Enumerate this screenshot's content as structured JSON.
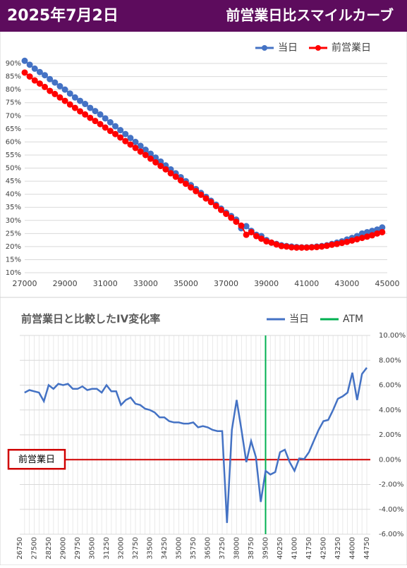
{
  "header": {
    "date": "2025年7月2日",
    "title": "前営業日比スマイルカーブ"
  },
  "chart_data": [
    {
      "type": "line",
      "markers": true,
      "grid": "y",
      "legend": "top-right",
      "x": [
        27000,
        27250,
        27500,
        27750,
        28000,
        28250,
        28500,
        28750,
        29000,
        29250,
        29500,
        29750,
        30000,
        30250,
        30500,
        30750,
        31000,
        31250,
        31500,
        31750,
        32000,
        32250,
        32500,
        32750,
        33000,
        33250,
        33500,
        33750,
        34000,
        34250,
        34500,
        34750,
        35000,
        35250,
        35500,
        35750,
        36000,
        36250,
        36500,
        36750,
        37000,
        37250,
        37500,
        37750,
        38000,
        38250,
        38500,
        38750,
        39000,
        39250,
        39500,
        39750,
        40000,
        40250,
        40500,
        40750,
        41000,
        41250,
        41500,
        41750,
        42000,
        42250,
        42500,
        42750,
        43000,
        43250,
        43500,
        43750,
        44000,
        44250,
        44500,
        44750
      ],
      "xlim": [
        27000,
        45000
      ],
      "xticks": [
        27000,
        29000,
        31000,
        33000,
        35000,
        37000,
        39000,
        41000,
        43000,
        45000
      ],
      "ylim": [
        10,
        90
      ],
      "yticks": [
        {
          "value": 10,
          "label": "10%"
        },
        {
          "value": 15,
          "label": "15%"
        },
        {
          "value": 20,
          "label": "20%"
        },
        {
          "value": 25,
          "label": "25%"
        },
        {
          "value": 30,
          "label": "30%"
        },
        {
          "value": 35,
          "label": "35%"
        },
        {
          "value": 40,
          "label": "40%"
        },
        {
          "value": 45,
          "label": "45%"
        },
        {
          "value": 50,
          "label": "50%"
        },
        {
          "value": 55,
          "label": "55%"
        },
        {
          "value": 60,
          "label": "60%"
        },
        {
          "value": 65,
          "label": "65%"
        },
        {
          "value": 70,
          "label": "70%"
        },
        {
          "value": 75,
          "label": "75%"
        },
        {
          "value": 80,
          "label": "80%"
        },
        {
          "value": 85,
          "label": "85%"
        },
        {
          "value": 90,
          "label": "90%"
        }
      ],
      "series": [
        {
          "name": "当日",
          "color": "#4472c4",
          "values": [
            91,
            89.5,
            88,
            86.7,
            85.5,
            84,
            82.7,
            81.3,
            80,
            78.5,
            77,
            75.7,
            74.5,
            73,
            71.8,
            70.5,
            69,
            67.5,
            66,
            64.5,
            63,
            61.5,
            60,
            58.5,
            57,
            55.5,
            54,
            52.5,
            51,
            49.5,
            48,
            46.5,
            45,
            43.5,
            42,
            40.5,
            39,
            37.5,
            36,
            34.5,
            33,
            31.7,
            30.3,
            27,
            27.8,
            26,
            24.5,
            24,
            22.5,
            21.5,
            21,
            20.5,
            20.2,
            20,
            19.8,
            19.7,
            19.7,
            19.8,
            20,
            20.2,
            20.5,
            21,
            21.5,
            22,
            22.7,
            23.3,
            24,
            25,
            25.5,
            26,
            26.5,
            27.3
          ]
        },
        {
          "name": "前営業日",
          "color": "#ff0000",
          "values": [
            86.5,
            85,
            83.5,
            82.3,
            81,
            79.5,
            78.3,
            77,
            75.7,
            74.3,
            73,
            71.7,
            70.5,
            69.2,
            68,
            66.8,
            65.5,
            64.2,
            63,
            61.7,
            60.3,
            59,
            57.7,
            56.3,
            55,
            53.6,
            52.2,
            50.8,
            49.5,
            48,
            46.7,
            45.3,
            44,
            42.6,
            41.2,
            39.8,
            38.4,
            37,
            35.5,
            34,
            32.5,
            31,
            29.5,
            28,
            24.5,
            25.5,
            24,
            23,
            22,
            21.5,
            20.8,
            20.2,
            20,
            19.7,
            19.6,
            19.6,
            19.6,
            19.7,
            19.8,
            20,
            20.3,
            20.7,
            21,
            21.4,
            21.8,
            22.3,
            22.8,
            23.3,
            23.8,
            24.3,
            25,
            25.5
          ]
        }
      ]
    },
    {
      "type": "line",
      "markers": false,
      "grid": "both",
      "legend": "top",
      "yaxis": "right",
      "title": "前営業日と比較したIV変化率",
      "x": [
        27000,
        27250,
        27500,
        27750,
        28000,
        28250,
        28500,
        28750,
        29000,
        29250,
        29500,
        29750,
        30000,
        30250,
        30500,
        30750,
        31000,
        31250,
        31500,
        31750,
        32000,
        32250,
        32500,
        32750,
        33000,
        33250,
        33500,
        33750,
        34000,
        34250,
        34500,
        34750,
        35000,
        35250,
        35500,
        35750,
        36000,
        36250,
        36500,
        36750,
        37000,
        37250,
        37500,
        37750,
        38000,
        38250,
        38500,
        38750,
        39000,
        39250,
        39500,
        39750,
        40000,
        40250,
        40500,
        40750,
        41000,
        41250,
        41500,
        41750,
        42000,
        42250,
        42500,
        42750,
        43000,
        43250,
        43500,
        43750,
        44000,
        44250,
        44500,
        44750
      ],
      "xlim": [
        26750,
        44750
      ],
      "xticks": [
        26750,
        27500,
        28250,
        29000,
        29750,
        30500,
        31250,
        32000,
        32750,
        33500,
        34250,
        35000,
        35750,
        36500,
        37250,
        38000,
        38750,
        39500,
        40250,
        41000,
        41750,
        42500,
        43250,
        44000,
        44750
      ],
      "ylim": [
        -6,
        10
      ],
      "yticks": [
        {
          "value": -6,
          "label": "-6.00%"
        },
        {
          "value": -4,
          "label": "-4.00%"
        },
        {
          "value": -2,
          "label": "-2.00%"
        },
        {
          "value": 0,
          "label": "0.00%"
        },
        {
          "value": 2,
          "label": "2.00%"
        },
        {
          "value": 4,
          "label": "4.00%"
        },
        {
          "value": 6,
          "label": "6.00%"
        },
        {
          "value": 8,
          "label": "8.00%"
        },
        {
          "value": 10,
          "label": "10.00%"
        }
      ],
      "series": [
        {
          "name": "当日",
          "color": "#4472c4",
          "values": [
            5.4,
            5.6,
            5.5,
            5.4,
            4.7,
            6.0,
            5.7,
            6.1,
            6.0,
            6.1,
            5.7,
            5.7,
            5.9,
            5.6,
            5.7,
            5.7,
            5.4,
            6.0,
            5.5,
            5.5,
            4.4,
            4.8,
            5.0,
            4.5,
            4.4,
            4.1,
            4.0,
            3.8,
            3.4,
            3.4,
            3.1,
            3.0,
            3.0,
            2.9,
            2.9,
            3.0,
            2.6,
            2.7,
            2.6,
            2.4,
            2.3,
            2.3,
            -5.1,
            2.4,
            4.8,
            2.4,
            -0.2,
            1.5,
            0.2,
            -3.4,
            -0.9,
            -1.2,
            -1.0,
            0.6,
            0.8,
            -0.2,
            -0.9,
            0.1,
            0.05,
            0.6,
            1.5,
            2.4,
            3.1,
            3.2,
            4.0,
            4.9,
            5.1,
            5.4,
            7.0,
            4.8,
            6.9,
            7.4
          ]
        }
      ],
      "vlines": [
        {
          "name": "ATM",
          "color": "#00b050",
          "x": 39500
        }
      ],
      "hlines": [
        {
          "label": "前営業日",
          "color": "#d00000",
          "y": 0
        }
      ]
    }
  ]
}
